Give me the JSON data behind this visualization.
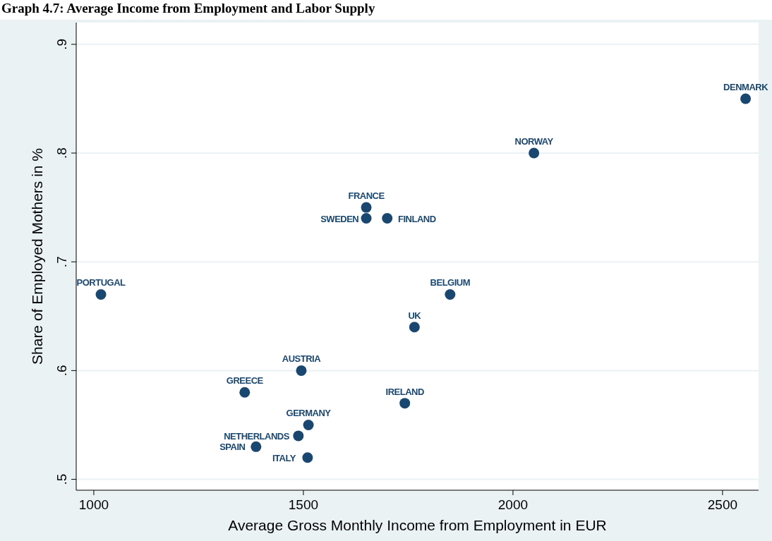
{
  "chart_data": {
    "type": "scatter",
    "title": "Graph 4.7: Average Income from Employment and Labor Supply",
    "xlabel": "Average Gross Monthly Income from Employment in EUR",
    "ylabel": "Share of Employed Mothers in %",
    "xlim": [
      958,
      2586
    ],
    "xticks": [
      1000,
      1500,
      2000,
      2500
    ],
    "ylim": [
      0.49,
      0.92
    ],
    "yticks": [
      {
        "value": 0.5,
        "label": ".5"
      },
      {
        "value": 0.6,
        "label": ".6"
      },
      {
        "value": 0.7,
        "label": ".7"
      },
      {
        "value": 0.8,
        "label": ".8"
      },
      {
        "value": 0.9,
        "label": ".9"
      }
    ],
    "grid": "y",
    "marker": "circle",
    "series": [
      {
        "color": "#1a476f",
        "x": [
          2555,
          2050,
          1650,
          1650,
          1700,
          1017,
          1850,
          1765,
          1495,
          1360,
          1742,
          1512,
          1488,
          1387,
          1510
        ],
        "values": [
          0.85,
          0.8,
          0.75,
          0.74,
          0.74,
          0.67,
          0.67,
          0.64,
          0.6,
          0.58,
          0.57,
          0.55,
          0.54,
          0.53,
          0.52
        ]
      }
    ],
    "annotations": [
      {
        "text": "DENMARK",
        "x": 2555,
        "y": 0.85
      },
      {
        "text": "NORWAY",
        "x": 2050,
        "y": 0.8
      },
      {
        "text": "FRANCE",
        "x": 1650,
        "y": 0.75
      },
      {
        "text": "SWEDEN",
        "x": 1650,
        "y": 0.74
      },
      {
        "text": "FINLAND",
        "x": 1700,
        "y": 0.74
      },
      {
        "text": "PORTUGAL",
        "x": 1017,
        "y": 0.67
      },
      {
        "text": "BELGIUM",
        "x": 1850,
        "y": 0.67
      },
      {
        "text": "UK",
        "x": 1765,
        "y": 0.64
      },
      {
        "text": "AUSTRIA",
        "x": 1495,
        "y": 0.6
      },
      {
        "text": "GREECE",
        "x": 1360,
        "y": 0.58
      },
      {
        "text": "IRELAND",
        "x": 1742,
        "y": 0.57
      },
      {
        "text": "GERMANY",
        "x": 1512,
        "y": 0.55
      },
      {
        "text": "NETHERLANDS",
        "x": 1488,
        "y": 0.54
      },
      {
        "text": "SPAIN",
        "x": 1387,
        "y": 0.53
      },
      {
        "text": "ITALY",
        "x": 1510,
        "y": 0.52
      }
    ]
  }
}
